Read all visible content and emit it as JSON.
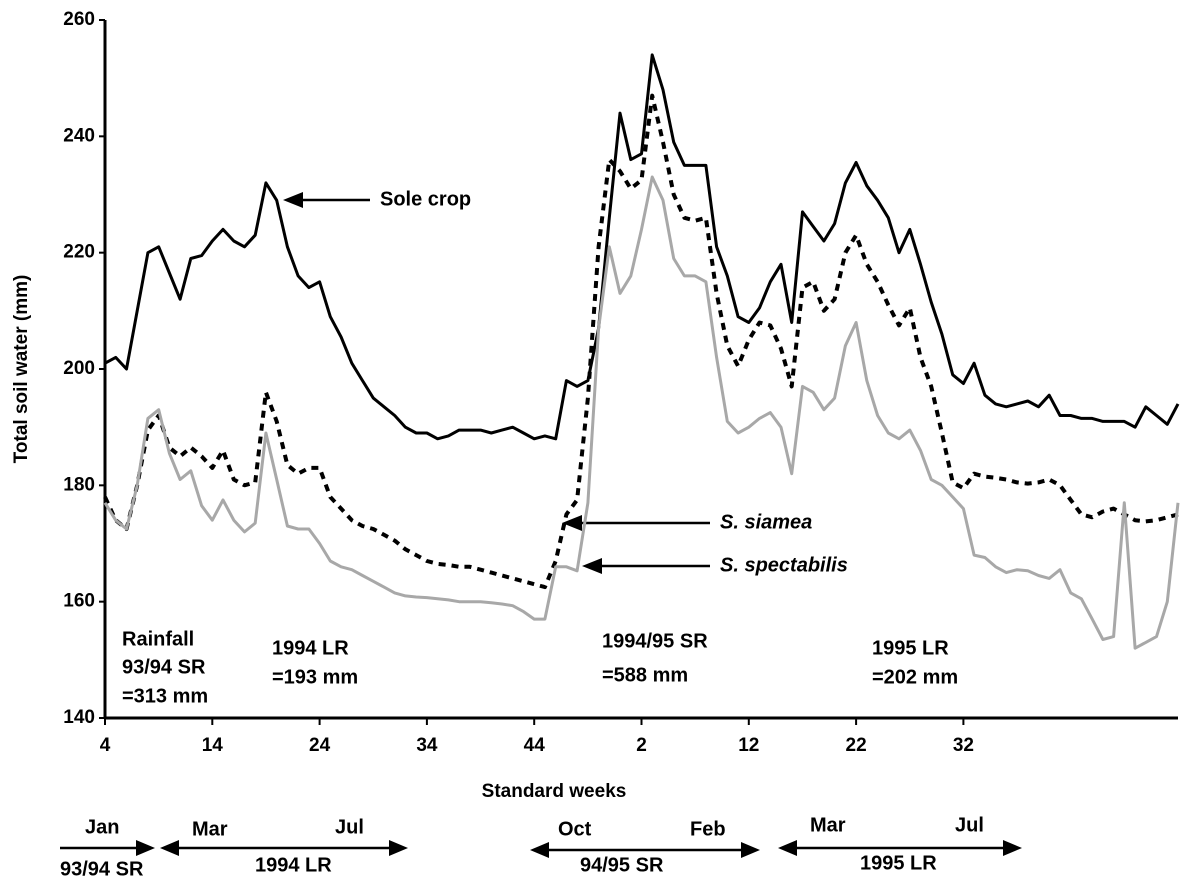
{
  "chart_data": {
    "type": "line",
    "y_label": "Total soil water (mm)",
    "x_label": "Standard weeks",
    "categories": [
      "4",
      null,
      null,
      null,
      null,
      null,
      null,
      null,
      null,
      null,
      "14",
      null,
      null,
      null,
      null,
      null,
      null,
      null,
      null,
      null,
      "24",
      null,
      null,
      null,
      null,
      null,
      null,
      null,
      null,
      null,
      "34",
      null,
      null,
      null,
      null,
      null,
      null,
      null,
      null,
      null,
      "44",
      null,
      null,
      null,
      null,
      null,
      null,
      null,
      null,
      null,
      "2",
      null,
      null,
      null,
      null,
      null,
      null,
      null,
      null,
      null,
      "12",
      null,
      null,
      null,
      null,
      null,
      null,
      null,
      null,
      null,
      "22",
      null,
      null,
      null,
      null,
      null,
      null,
      null,
      null,
      null,
      "32",
      null,
      null,
      null,
      null,
      null,
      null,
      null,
      null,
      null,
      null,
      null,
      null,
      null,
      null,
      null,
      null,
      null,
      null,
      null,
      null
    ],
    "ylim": [
      140,
      260
    ],
    "yticks": [
      140,
      160,
      180,
      200,
      220,
      240,
      260
    ],
    "series": [
      {
        "name": "Sole crop",
        "color": "#000000",
        "style": "solid",
        "values": [
          201,
          202,
          200,
          210,
          220,
          221,
          216.5,
          212,
          219,
          219.5,
          222,
          224,
          222,
          221,
          223,
          232,
          229,
          221,
          216,
          214,
          215,
          209,
          205.5,
          201,
          198,
          195,
          193.5,
          192,
          190,
          189,
          189,
          188,
          188.5,
          189.5,
          189.5,
          189.5,
          189,
          189.5,
          190,
          189,
          188,
          188.5,
          188,
          198,
          197,
          198,
          207,
          226,
          244,
          236,
          237,
          254,
          248,
          239,
          235,
          235,
          235,
          221,
          216,
          209,
          208,
          210.5,
          215,
          218,
          208,
          227,
          224.5,
          222,
          225,
          232,
          235.5,
          231.5,
          229,
          226,
          220,
          224,
          218,
          211.5,
          206,
          199,
          197.5,
          201,
          195.5,
          194,
          193.5,
          194,
          194.5,
          193.5,
          195.5,
          192,
          192,
          191.5,
          191.5,
          191,
          191,
          191,
          190,
          193.5,
          192,
          190.5,
          194
        ]
      },
      {
        "name": "S. siamea",
        "color": "#000000",
        "style": "dashed",
        "values": [
          178,
          174,
          172.5,
          180,
          189.5,
          192,
          186.5,
          185,
          186.5,
          185,
          183,
          186,
          181,
          180,
          180.5,
          196,
          191,
          183.5,
          182,
          183,
          183,
          178,
          176,
          174,
          173,
          172.5,
          171.5,
          170.5,
          169,
          168,
          167,
          166.5,
          166.3,
          166,
          166,
          165.5,
          165,
          164.5,
          164,
          163.5,
          163,
          162.5,
          167,
          175,
          177.5,
          195,
          221,
          236,
          234,
          231,
          232.5,
          247,
          239,
          230,
          226,
          225.5,
          226,
          213,
          204,
          200.5,
          205,
          208,
          207.5,
          203.5,
          197,
          214,
          215,
          210,
          212,
          220,
          223,
          218,
          215,
          211,
          207.5,
          210.5,
          202,
          197,
          189,
          180.5,
          179.5,
          182,
          181.5,
          181.3,
          181,
          180.5,
          180.3,
          180.5,
          181,
          180,
          177.5,
          175,
          174.5,
          175.5,
          176,
          175,
          174,
          173.8,
          174,
          174.5,
          175
        ]
      },
      {
        "name": "S. spectabilis",
        "color": "#a8a8a8",
        "style": "solid",
        "values": [
          177,
          174,
          172.5,
          180,
          191.5,
          193,
          185.5,
          181,
          182.5,
          176.5,
          174,
          177.5,
          174,
          172,
          173.5,
          189,
          181,
          173,
          172.5,
          172.5,
          170,
          167,
          166,
          165.5,
          164.5,
          163.5,
          162.5,
          161.5,
          161,
          160.8,
          160.7,
          160.5,
          160.3,
          160,
          160,
          160,
          159.8,
          159.6,
          159.3,
          158.3,
          157,
          157,
          166,
          166,
          165.3,
          177,
          207,
          221,
          213,
          216,
          224,
          233,
          229,
          219,
          216,
          216,
          215,
          202,
          191,
          189,
          190,
          191.5,
          192.5,
          190,
          182,
          197,
          196,
          193,
          195,
          204,
          208,
          198,
          192,
          189,
          188,
          189.5,
          186,
          181,
          180,
          178,
          176,
          168,
          167.6,
          166,
          165,
          165.5,
          165.3,
          164.5,
          164,
          165.5,
          161.5,
          160.5,
          157,
          153.5,
          154,
          177,
          152,
          153,
          154,
          160,
          177
        ]
      }
    ],
    "rainfall": {
      "title": "Rainfall",
      "periods": [
        {
          "name": "93/94 SR",
          "amount": "=313 mm"
        },
        {
          "name": "1994 LR",
          "amount": "=193 mm"
        },
        {
          "name": "1994/95 SR",
          "amount": "=588 mm"
        },
        {
          "name": "1995 LR",
          "amount": "=202 mm"
        }
      ]
    },
    "timeline": [
      {
        "months": [
          "Jan"
        ],
        "season": "93/94 SR"
      },
      {
        "months": [
          "Mar",
          "Jul"
        ],
        "season": "1994 LR"
      },
      {
        "months": [
          "Oct",
          "Feb"
        ],
        "season": "94/95 SR"
      },
      {
        "months": [
          "Mar",
          "Jul"
        ],
        "season": "1995 LR"
      }
    ]
  }
}
